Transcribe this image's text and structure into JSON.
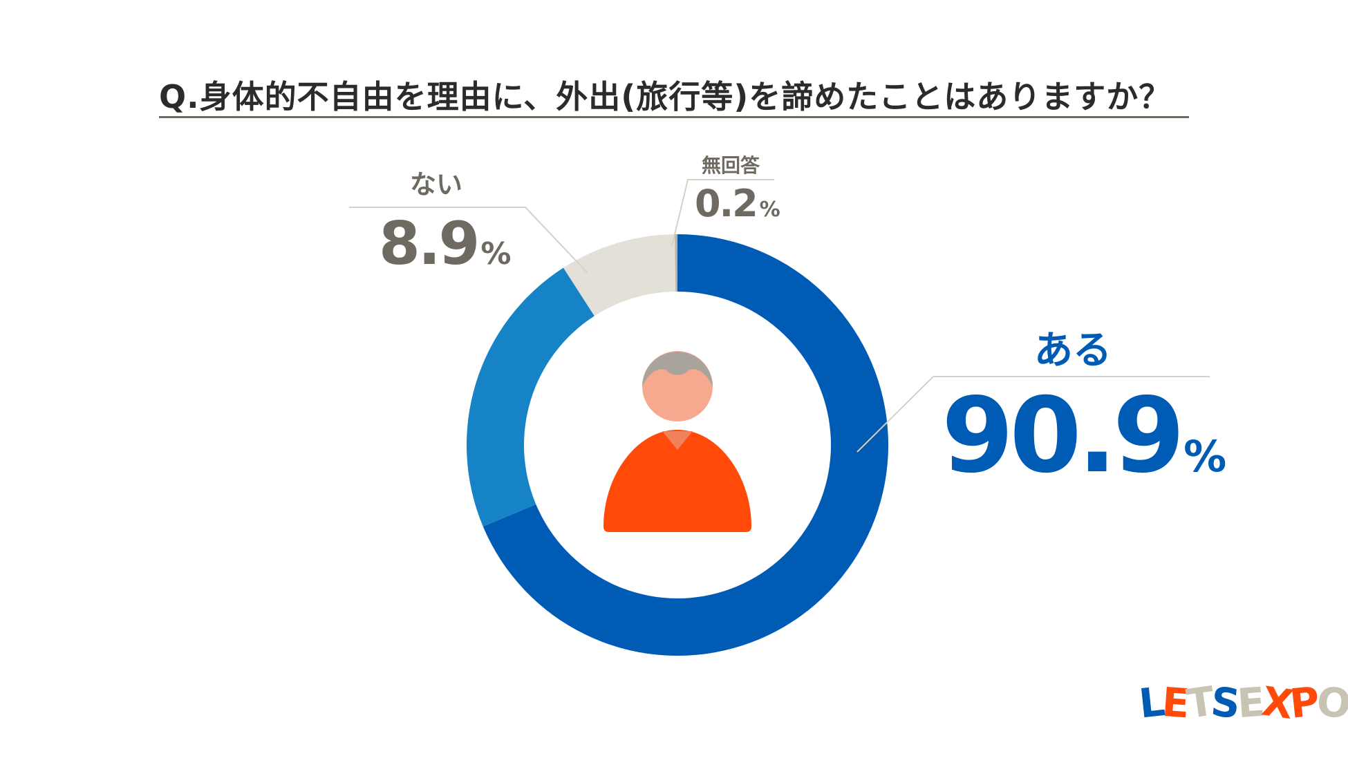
{
  "title": "Q.身体的不自由を理由に、外出(旅行等)を諦めたことはありますか？",
  "colors": {
    "aru": "#005bb5",
    "aru_light": "#1683c7",
    "nai": "#e3e0d8",
    "mukaito": "#b8b4aa",
    "label_gray": "#6e6a61",
    "head_hair": "#a8a49c",
    "face": "#f6a98f",
    "body": "#ff4a0a"
  },
  "chart_data": {
    "type": "pie",
    "variant": "donut",
    "categories": [
      "ある",
      "ない",
      "無回答"
    ],
    "values": [
      90.9,
      8.9,
      0.2
    ],
    "unit": "%",
    "labels": {
      "aru": {
        "name": "ある",
        "value": "90.9",
        "unit": "%"
      },
      "nai": {
        "name": "ない",
        "value": "8.9",
        "unit": "%"
      },
      "mukaito": {
        "name": "無回答",
        "value": "0.2",
        "unit": "%"
      }
    }
  },
  "logo": {
    "text": "LETSEXPO",
    "chars": [
      "L",
      "E",
      "T",
      "S",
      "E",
      "X",
      "P",
      "O"
    ],
    "colors": [
      "#005bb5",
      "#ff4a0a",
      "#c9c3b3",
      "#005bb5",
      "#c9c3b3",
      "#ff4a0a",
      "#ff4a0a",
      "#c9c3b3"
    ]
  }
}
